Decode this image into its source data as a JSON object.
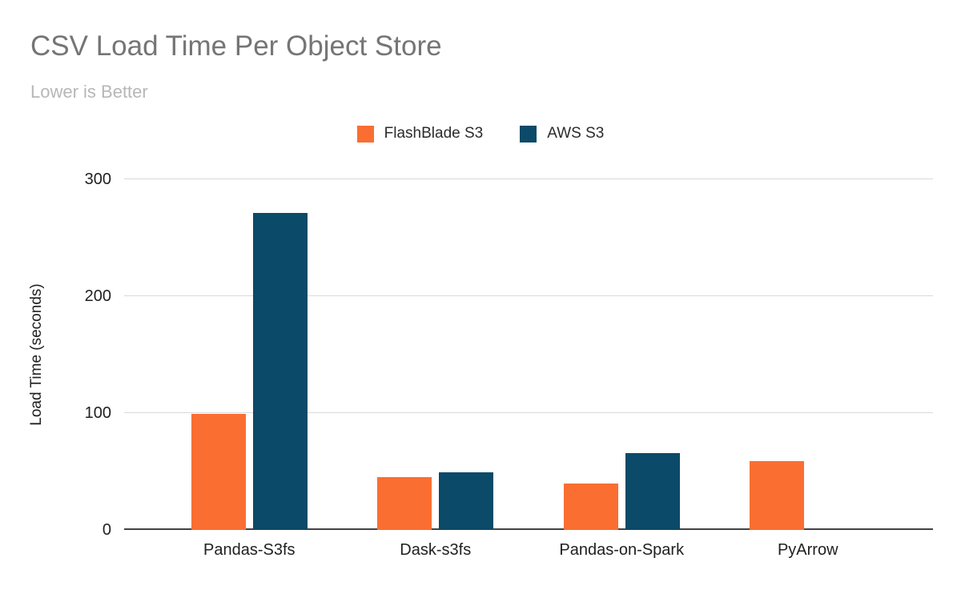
{
  "chart_data": {
    "type": "bar",
    "title": "CSV Load Time Per Object Store",
    "subtitle": "Lower is Better",
    "categories": [
      "Pandas-S3fs",
      "Dask-s3fs",
      "Pandas-on-Spark",
      "PyArrow"
    ],
    "series": [
      {
        "name": "FlashBlade S3",
        "color": "#FA6E32",
        "values": [
          99,
          45,
          40,
          59
        ]
      },
      {
        "name": "AWS S3",
        "color": "#0B4A68",
        "values": [
          271,
          49,
          66,
          0
        ]
      }
    ],
    "xlabel": "",
    "ylabel": "Load Time (seconds)",
    "yticks": [
      0,
      100,
      200,
      300
    ],
    "ylim": [
      0,
      300
    ],
    "grid": true,
    "legend_position": "top-center",
    "colors": {
      "title_text": "#757575",
      "subtitle_text": "#b7b7b7",
      "axis_text": "#212121",
      "gridline": "#d9d9d9",
      "axis_line": "#424242",
      "background": "#ffffff"
    }
  }
}
